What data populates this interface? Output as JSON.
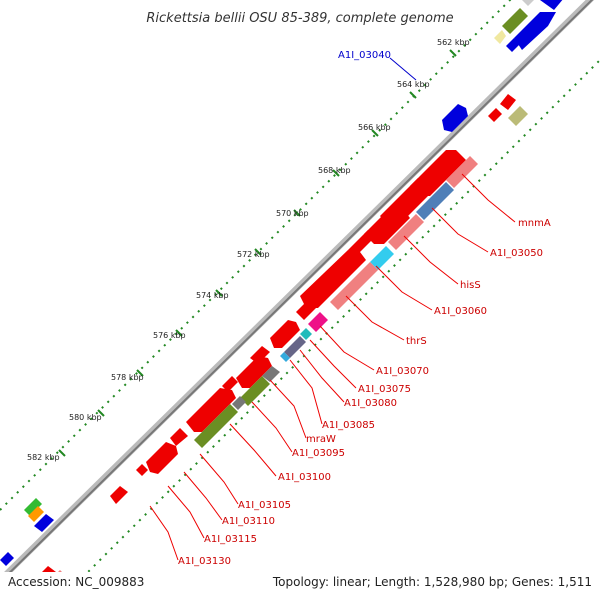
{
  "title": "Rickettsia bellii OSU 85-389, complete genome",
  "footer": {
    "accession": "Accession: NC_009883",
    "topology": "Topology: linear; Length: 1,528,980 bp; Genes: 1,511"
  },
  "ticks": [
    "562 kbp",
    "564 kbp",
    "566 kbp",
    "568 kbp",
    "570 kbp",
    "572 kbp",
    "574 kbp",
    "576 kbp",
    "578 kbp",
    "580 kbp",
    "582 kbp"
  ],
  "labels": {
    "A1I_03040": "A1I_03040",
    "mnmA": "mnmA",
    "A1I_03050": "A1I_03050",
    "hisS": "hisS",
    "A1I_03060": "A1I_03060",
    "thrS": "thrS",
    "A1I_03070": "A1I_03070",
    "A1I_03075": "A1I_03075",
    "A1I_03080": "A1I_03080",
    "A1I_03085": "A1I_03085",
    "mraW": "mraW",
    "A1I_03095": "A1I_03095",
    "A1I_03100": "A1I_03100",
    "A1I_03105": "A1I_03105",
    "A1I_03110": "A1I_03110",
    "A1I_03115": "A1I_03115",
    "A1I_03130": "A1I_03130"
  },
  "colors": {
    "cds_forward": "#ee0000",
    "cds_reverse": "#0000dd",
    "backbone": "#888888",
    "tick": "#228822",
    "label_line": "#ee0000"
  }
}
